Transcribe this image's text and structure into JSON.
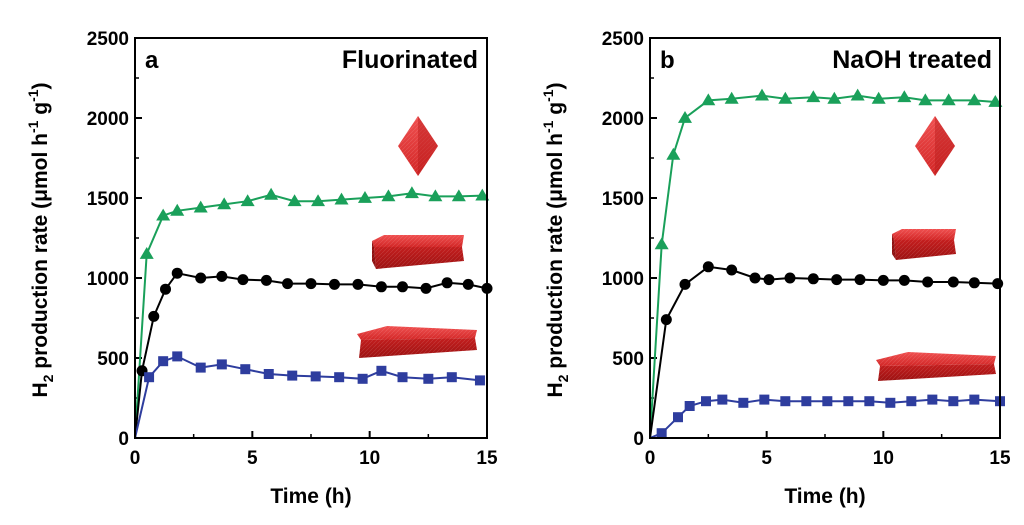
{
  "chart_data": [
    {
      "type": "line",
      "panel_label": "a",
      "title": "Fluorinated",
      "xlabel": "Time (h)",
      "ylabel_main": "H",
      "ylabel_sub": "2",
      "ylabel_rest": " production rate (μmol h",
      "ylabel_sup1": "-1",
      "ylabel_mid": " g",
      "ylabel_sup2": "-1",
      "ylabel_end": ")",
      "xlim": [
        0,
        15
      ],
      "ylim": [
        0,
        2500
      ],
      "x_ticks": [
        "0",
        "5",
        "10",
        "15"
      ],
      "y_ticks": [
        "0",
        "500",
        "1000",
        "1500",
        "2000",
        "2500"
      ],
      "series": [
        {
          "name": "octahedral",
          "color": "#1aa05a",
          "marker": "triangle",
          "points": [
            [
              0,
              0
            ],
            [
              0.5,
              1150
            ],
            [
              1.2,
              1390
            ],
            [
              1.8,
              1420
            ],
            [
              2.8,
              1440
            ],
            [
              3.8,
              1460
            ],
            [
              4.8,
              1480
            ],
            [
              5.8,
              1520
            ],
            [
              6.8,
              1480
            ],
            [
              7.8,
              1480
            ],
            [
              8.8,
              1490
            ],
            [
              9.8,
              1500
            ],
            [
              10.8,
              1510
            ],
            [
              11.8,
              1530
            ],
            [
              12.8,
              1510
            ],
            [
              13.8,
              1510
            ],
            [
              14.8,
              1515
            ]
          ]
        },
        {
          "name": "truncated plate",
          "color": "#000000",
          "marker": "circle",
          "points": [
            [
              0,
              0
            ],
            [
              0.3,
              420
            ],
            [
              0.8,
              760
            ],
            [
              1.3,
              930
            ],
            [
              1.8,
              1030
            ],
            [
              2.8,
              1000
            ],
            [
              3.7,
              1010
            ],
            [
              4.6,
              990
            ],
            [
              5.6,
              985
            ],
            [
              6.5,
              965
            ],
            [
              7.5,
              965
            ],
            [
              8.5,
              960
            ],
            [
              9.5,
              960
            ],
            [
              10.5,
              945
            ],
            [
              11.4,
              945
            ],
            [
              12.4,
              935
            ],
            [
              13.3,
              970
            ],
            [
              14.2,
              960
            ],
            [
              15,
              935
            ]
          ]
        },
        {
          "name": "thin plate",
          "color": "#2e3d9e",
          "marker": "square",
          "points": [
            [
              0,
              0
            ],
            [
              0.6,
              380
            ],
            [
              1.2,
              480
            ],
            [
              1.8,
              510
            ],
            [
              2.8,
              440
            ],
            [
              3.7,
              460
            ],
            [
              4.7,
              430
            ],
            [
              5.7,
              400
            ],
            [
              6.7,
              390
            ],
            [
              7.7,
              385
            ],
            [
              8.7,
              380
            ],
            [
              9.7,
              370
            ],
            [
              10.5,
              420
            ],
            [
              11.4,
              380
            ],
            [
              12.5,
              370
            ],
            [
              13.5,
              380
            ],
            [
              14.7,
              360
            ]
          ]
        }
      ]
    },
    {
      "type": "line",
      "panel_label": "b",
      "title": "NaOH treated",
      "xlabel": "Time (h)",
      "ylabel_main": "H",
      "ylabel_sub": "2",
      "ylabel_rest": " production rate (μmol h",
      "ylabel_sup1": "-1",
      "ylabel_mid": " g",
      "ylabel_sup2": "-1",
      "ylabel_end": ")",
      "xlim": [
        0,
        15
      ],
      "ylim": [
        0,
        2500
      ],
      "x_ticks": [
        "0",
        "5",
        "10",
        "15"
      ],
      "y_ticks": [
        "0",
        "500",
        "1000",
        "1500",
        "2000",
        "2500"
      ],
      "series": [
        {
          "name": "octahedral",
          "color": "#1aa05a",
          "marker": "triangle",
          "points": [
            [
              0,
              0
            ],
            [
              0.5,
              1210
            ],
            [
              1,
              1770
            ],
            [
              1.5,
              2000
            ],
            [
              2.5,
              2110
            ],
            [
              3.5,
              2120
            ],
            [
              4.8,
              2140
            ],
            [
              5.8,
              2120
            ],
            [
              7,
              2130
            ],
            [
              7.9,
              2120
            ],
            [
              8.9,
              2140
            ],
            [
              9.8,
              2120
            ],
            [
              10.9,
              2130
            ],
            [
              11.8,
              2110
            ],
            [
              12.8,
              2110
            ],
            [
              13.9,
              2110
            ],
            [
              14.8,
              2100
            ]
          ]
        },
        {
          "name": "truncated plate",
          "color": "#000000",
          "marker": "circle",
          "points": [
            [
              0,
              0
            ],
            [
              0.7,
              740
            ],
            [
              1.5,
              960
            ],
            [
              2.5,
              1070
            ],
            [
              3.5,
              1050
            ],
            [
              4.5,
              1000
            ],
            [
              5.1,
              990
            ],
            [
              6,
              1000
            ],
            [
              7,
              995
            ],
            [
              8,
              990
            ],
            [
              9,
              990
            ],
            [
              10,
              985
            ],
            [
              10.9,
              985
            ],
            [
              11.9,
              975
            ],
            [
              13,
              975
            ],
            [
              13.9,
              970
            ],
            [
              14.9,
              965
            ]
          ]
        },
        {
          "name": "thin plate",
          "color": "#2e3d9e",
          "marker": "square",
          "points": [
            [
              0,
              0
            ],
            [
              0.5,
              30
            ],
            [
              1.2,
              130
            ],
            [
              1.7,
              200
            ],
            [
              2.4,
              230
            ],
            [
              3.1,
              240
            ],
            [
              4,
              220
            ],
            [
              4.9,
              240
            ],
            [
              5.8,
              230
            ],
            [
              6.7,
              230
            ],
            [
              7.6,
              230
            ],
            [
              8.5,
              230
            ],
            [
              9.4,
              230
            ],
            [
              10.3,
              220
            ],
            [
              11.2,
              230
            ],
            [
              12.1,
              240
            ],
            [
              13,
              230
            ],
            [
              13.9,
              240
            ],
            [
              15,
              230
            ]
          ]
        }
      ]
    }
  ]
}
